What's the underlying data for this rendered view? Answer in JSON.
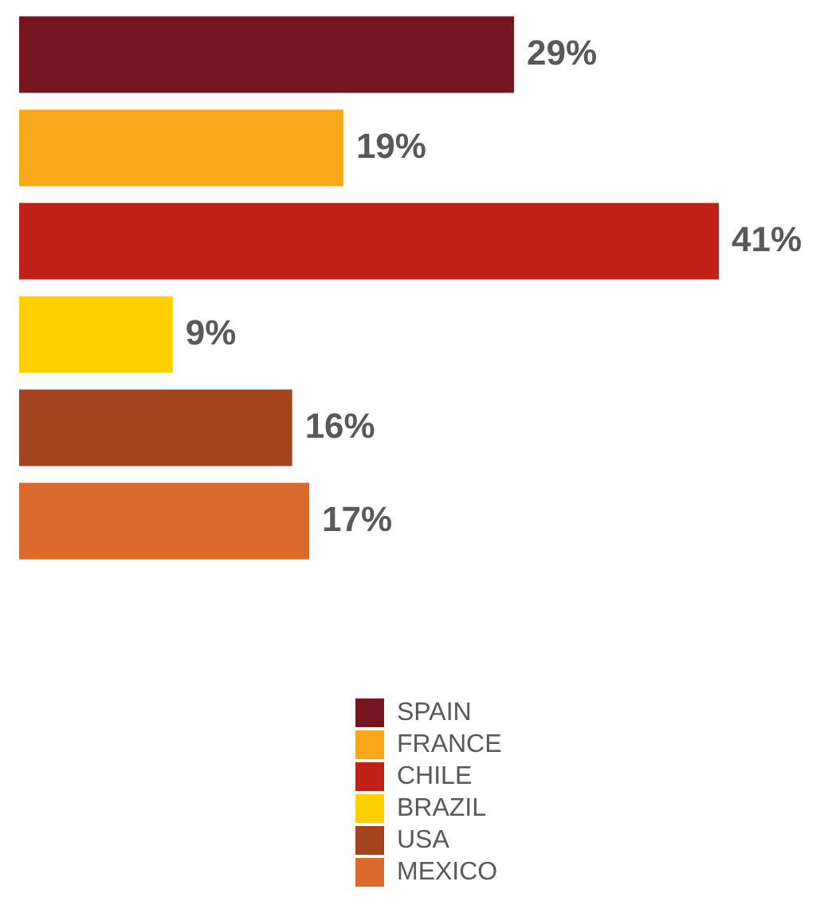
{
  "chart_data": {
    "type": "bar",
    "orientation": "horizontal",
    "categories": [
      null
    ],
    "series": [
      {
        "name": "SPAIN",
        "color": "#76151f",
        "values": [
          29
        ],
        "value_labels": [
          "29%"
        ]
      },
      {
        "name": "FRANCE",
        "color": "#f9a81a",
        "values": [
          19
        ],
        "value_labels": [
          "19%"
        ]
      },
      {
        "name": "CHILE",
        "color": "#c0221a",
        "values": [
          41
        ],
        "value_labels": [
          "41%"
        ]
      },
      {
        "name": "BRAZIL",
        "color": "#ffd000",
        "values": [
          9
        ],
        "value_labels": [
          "9%"
        ]
      },
      {
        "name": "USA",
        "color": "#a4441e",
        "values": [
          16
        ],
        "value_labels": [
          "16%"
        ]
      },
      {
        "name": "MEXICO",
        "color": "#db6a2c",
        "values": [
          17
        ],
        "value_labels": [
          "17%"
        ]
      }
    ],
    "tick_labels": false,
    "legend": "bottom"
  }
}
